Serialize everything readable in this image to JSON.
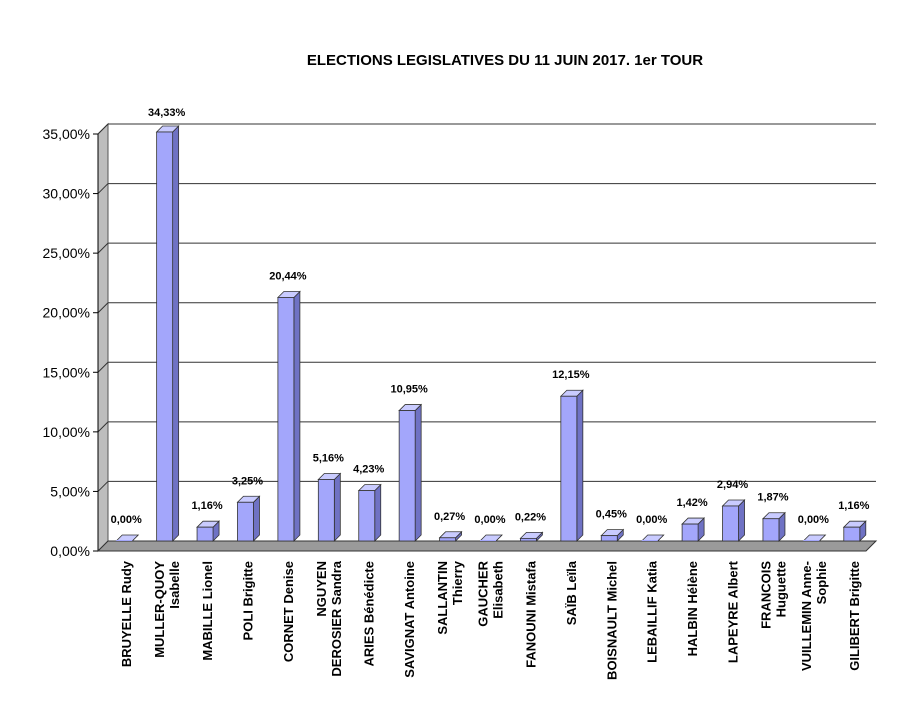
{
  "chart_data": {
    "type": "bar",
    "title": "ELECTIONS LEGISLATIVES DU 11 JUIN 2017. 1er TOUR",
    "xlabel": "",
    "ylabel": "",
    "ylim": [
      0,
      35
    ],
    "yticks": [
      "0,00%",
      "5,00%",
      "10,00%",
      "15,00%",
      "20,00%",
      "25,00%",
      "30,00%",
      "35,00%"
    ],
    "grid": true,
    "legend": "none",
    "bar_color": "#a3a6fb",
    "categories": [
      [
        "BRUYELLE Rudy"
      ],
      [
        "MULLER-QUOY",
        "Isabelle"
      ],
      [
        "MABILLE Lionel"
      ],
      [
        "POLI Brigitte"
      ],
      [
        "CORNET Denise"
      ],
      [
        "NGUYEN",
        "DEROSIER Sandra"
      ],
      [
        "ARIES Bénédicte"
      ],
      [
        "SAVIGNAT Antoine"
      ],
      [
        "SALLANTIN",
        "Thierry"
      ],
      [
        "GAUCHER",
        "Elisabeth"
      ],
      [
        "FANOUNI Mistafa"
      ],
      [
        "SAÏB Leïla"
      ],
      [
        "BOISNAULT Michel"
      ],
      [
        "LEBAILLIF Katia"
      ],
      [
        "HALBIN Hélène"
      ],
      [
        "LAPEYRE Albert"
      ],
      [
        "FRANCOIS",
        "Huguette"
      ],
      [
        "VUILLEMIN Anne-",
        "Sophie"
      ],
      [
        "GILIBERT Brigitte"
      ]
    ],
    "values": [
      0.0,
      34.33,
      1.16,
      3.25,
      20.44,
      5.16,
      4.23,
      10.95,
      0.27,
      0.0,
      0.22,
      12.15,
      0.45,
      0.0,
      1.42,
      2.94,
      1.87,
      0.0,
      1.16
    ],
    "labels": [
      "0,00%",
      "34,33%",
      "1,16%",
      "3,25%",
      "20,44%",
      "5,16%",
      "4,23%",
      "10,95%",
      "0,27%",
      "0,00%",
      "0,22%",
      "12,15%",
      "0,45%",
      "0,00%",
      "1,42%",
      "2,94%",
      "1,87%",
      "0,00%",
      "1,16%"
    ]
  }
}
